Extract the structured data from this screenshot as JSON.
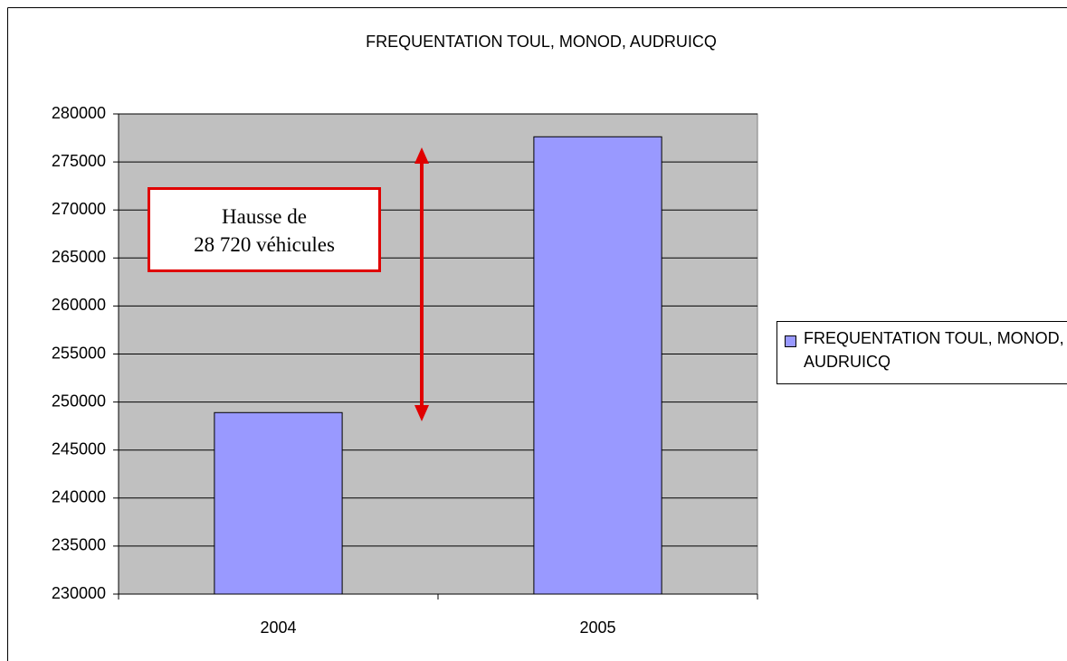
{
  "chart_data": {
    "type": "bar",
    "title": "FREQUENTATION TOUL, MONOD, AUDRUICQ",
    "categories": [
      "2004",
      "2005"
    ],
    "series": [
      {
        "name": "FREQUENTATION TOUL, MONOD, AUDRUICQ",
        "color": "#9999ff",
        "values": [
          248900,
          277620
        ]
      }
    ],
    "ylim": [
      230000,
      280000
    ],
    "yticks": [
      230000,
      235000,
      240000,
      245000,
      250000,
      255000,
      260000,
      265000,
      270000,
      275000,
      280000
    ],
    "grid": true,
    "legend": "right",
    "annotation": [
      "Hausse de",
      "28 720 véhicules"
    ]
  }
}
